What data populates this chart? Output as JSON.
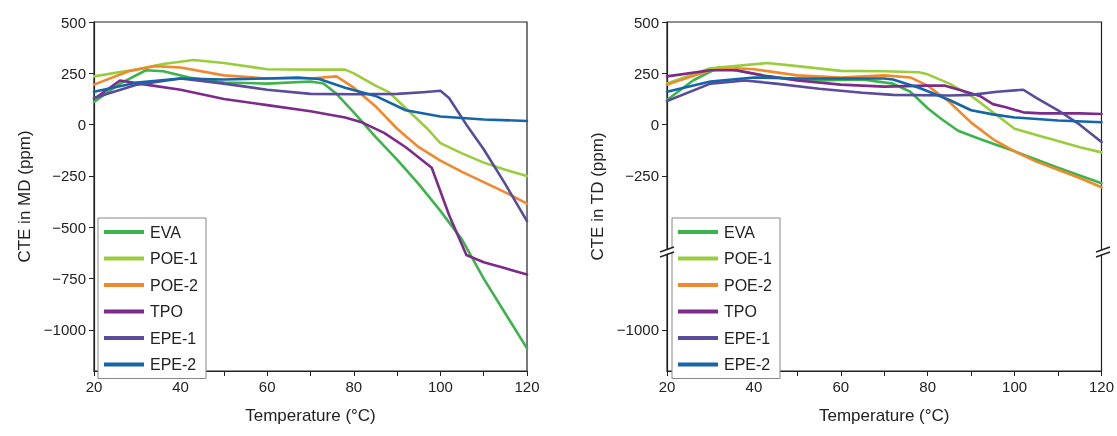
{
  "chart_data": [
    {
      "type": "line",
      "xlabel": "Temperature (°C)",
      "ylabel": "CTE in MD (ppm)",
      "xlim": [
        20,
        120
      ],
      "xticks": [
        20,
        {
          "value": 30,
          "label": null
        },
        40,
        {
          "value": 50,
          "label": null
        },
        60,
        {
          "value": 70,
          "label": null
        },
        80,
        {
          "value": 90,
          "label": null
        },
        100,
        {
          "value": 110,
          "label": null
        },
        120
      ],
      "ylim": [
        -1200,
        500
      ],
      "yticks": [
        500,
        250,
        0,
        -250,
        -500,
        -750,
        -1000
      ],
      "legend": "bottom left",
      "grid": false,
      "marker": "none",
      "line_style": "solid",
      "series": [
        {
          "name": "EVA",
          "color": "#3cb44b",
          "x": [
            20,
            26,
            32,
            36,
            42,
            50,
            60,
            70,
            73,
            76,
            80,
            85,
            90,
            95,
            100,
            105,
            110,
            115,
            120
          ],
          "values": [
            110,
            200,
            265,
            260,
            230,
            205,
            200,
            210,
            200,
            150,
            60,
            -60,
            -170,
            -290,
            -420,
            -560,
            -750,
            -920,
            -1090
          ]
        },
        {
          "name": "POE-1",
          "color": "#9acd3c",
          "x": [
            20,
            30,
            36,
            43,
            50,
            60,
            70,
            78,
            80,
            85,
            88,
            92,
            97,
            100,
            105,
            110,
            115,
            120
          ],
          "values": [
            235,
            270,
            295,
            315,
            300,
            270,
            268,
            268,
            250,
            190,
            160,
            80,
            -20,
            -90,
            -140,
            -185,
            -220,
            -250
          ]
        },
        {
          "name": "POE-2",
          "color": "#f0892e",
          "x": [
            20,
            28,
            34,
            40,
            50,
            60,
            70,
            76,
            80,
            85,
            90,
            95,
            100,
            105,
            110,
            115,
            120
          ],
          "values": [
            195,
            260,
            285,
            278,
            240,
            225,
            225,
            235,
            180,
            90,
            -20,
            -110,
            -175,
            -230,
            -280,
            -330,
            -385
          ]
        },
        {
          "name": "TPO",
          "color": "#7d2b8b",
          "x": [
            20,
            26,
            32,
            40,
            50,
            60,
            70,
            78,
            82,
            87,
            92,
            98,
            102,
            106,
            110,
            115,
            120
          ],
          "values": [
            125,
            215,
            195,
            170,
            125,
            95,
            65,
            35,
            10,
            -40,
            -110,
            -210,
            -440,
            -635,
            -670,
            -700,
            -730
          ]
        },
        {
          "name": "EPE-1",
          "color": "#5b4b9d",
          "x": [
            20,
            30,
            40,
            50,
            60,
            70,
            80,
            90,
            96,
            100,
            102,
            106,
            110,
            115,
            120
          ],
          "values": [
            130,
            195,
            225,
            200,
            170,
            150,
            148,
            150,
            158,
            165,
            130,
            0,
            -120,
            -290,
            -470
          ]
        },
        {
          "name": "EPE-2",
          "color": "#1565a8",
          "x": [
            20,
            30,
            40,
            50,
            60,
            67,
            72,
            78,
            85,
            92,
            100,
            110,
            120
          ],
          "values": [
            160,
            205,
            225,
            220,
            225,
            230,
            222,
            180,
            140,
            70,
            40,
            25,
            18
          ]
        }
      ]
    },
    {
      "type": "line",
      "xlabel": "Temperature (°C)",
      "ylabel": "CTE in TD (ppm)",
      "xlim": [
        20,
        120
      ],
      "xticks": [
        20,
        {
          "value": 30,
          "label": null
        },
        40,
        {
          "value": 50,
          "label": null
        },
        60,
        {
          "value": 70,
          "label": null
        },
        80,
        {
          "value": 90,
          "label": null
        },
        100,
        {
          "value": 110,
          "label": null
        },
        120
      ],
      "ylim": [
        -1200,
        500
      ],
      "yticks": [
        500,
        250,
        0,
        -250,
        -1000
      ],
      "legend": "bottom left",
      "grid": false,
      "marker": "none",
      "line_style": "solid",
      "series": [
        {
          "name": "EVA",
          "color": "#3cb44b",
          "x": [
            20,
            26,
            32,
            38,
            45,
            55,
            65,
            72,
            76,
            80,
            83,
            87,
            92,
            100,
            110,
            120
          ],
          "values": [
            120,
            215,
            280,
            255,
            230,
            215,
            220,
            200,
            160,
            80,
            30,
            -30,
            -70,
            -130,
            -210,
            -285
          ]
        },
        {
          "name": "POE-1",
          "color": "#9acd3c",
          "x": [
            20,
            30,
            43,
            50,
            60,
            70,
            78,
            80,
            85,
            90,
            95,
            100,
            105,
            110,
            115,
            120
          ],
          "values": [
            200,
            275,
            300,
            285,
            262,
            260,
            255,
            245,
            200,
            140,
            60,
            -20,
            -50,
            -80,
            -110,
            -135
          ]
        },
        {
          "name": "POE-2",
          "color": "#f0892e",
          "x": [
            20,
            30,
            36,
            40,
            50,
            60,
            70,
            76,
            80,
            85,
            90,
            95,
            100,
            105,
            110,
            115,
            120
          ],
          "values": [
            195,
            265,
            275,
            270,
            240,
            230,
            240,
            230,
            190,
            110,
            10,
            -70,
            -130,
            -180,
            -220,
            -260,
            -305
          ]
        },
        {
          "name": "TPO",
          "color": "#7d2b8b",
          "x": [
            20,
            30,
            36,
            42,
            50,
            60,
            70,
            80,
            84,
            88,
            92,
            95,
            98,
            102,
            106,
            115,
            120
          ],
          "values": [
            235,
            265,
            265,
            240,
            215,
            195,
            185,
            190,
            190,
            165,
            140,
            100,
            85,
            60,
            55,
            55,
            52
          ]
        },
        {
          "name": "EPE-1",
          "color": "#5b4b9d",
          "x": [
            20,
            30,
            38,
            45,
            55,
            65,
            72,
            85,
            90,
            96,
            102,
            105,
            110,
            115,
            120
          ],
          "values": [
            115,
            200,
            215,
            200,
            175,
            155,
            145,
            142,
            145,
            160,
            170,
            130,
            70,
            0,
            -85
          ]
        },
        {
          "name": "EPE-2",
          "color": "#1565a8",
          "x": [
            20,
            30,
            40,
            50,
            60,
            70,
            72,
            78,
            85,
            90,
            95,
            100,
            110,
            120
          ],
          "values": [
            160,
            210,
            230,
            225,
            225,
            225,
            220,
            180,
            120,
            70,
            50,
            35,
            20,
            12
          ]
        }
      ]
    }
  ]
}
